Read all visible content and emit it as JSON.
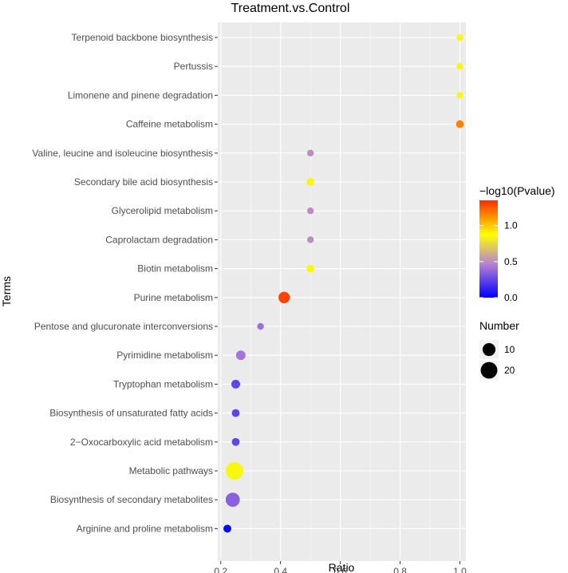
{
  "chart_data": {
    "type": "scatter",
    "title": "Treatment.vs.Control",
    "xlabel": "Ratio",
    "ylabel": "Terms",
    "xlim": [
      0.19,
      1.02
    ],
    "xticks": [
      0.2,
      0.4,
      0.6,
      0.8,
      1.0
    ],
    "xtick_labels": [
      "0.2",
      "0.4",
      "0.6",
      "0.8",
      "1.0"
    ],
    "grid": true,
    "points": [
      {
        "term": "Terpenoid backbone biosynthesis",
        "ratio": 1.0,
        "pvalue_neglog10": 0.85,
        "number": 1
      },
      {
        "term": "Pertussis",
        "ratio": 1.0,
        "pvalue_neglog10": 0.85,
        "number": 1
      },
      {
        "term": "Limonene and pinene degradation",
        "ratio": 1.0,
        "pvalue_neglog10": 0.85,
        "number": 1
      },
      {
        "term": "Caffeine metabolism",
        "ratio": 1.0,
        "pvalue_neglog10": 1.15,
        "number": 2
      },
      {
        "term": "Valine, leucine and isoleucine biosynthesis",
        "ratio": 0.5,
        "pvalue_neglog10": 0.5,
        "number": 1
      },
      {
        "term": "Secondary bile acid biosynthesis",
        "ratio": 0.5,
        "pvalue_neglog10": 0.85,
        "number": 2
      },
      {
        "term": "Glycerolipid metabolism",
        "ratio": 0.5,
        "pvalue_neglog10": 0.5,
        "number": 1
      },
      {
        "term": "Caprolactam degradation",
        "ratio": 0.5,
        "pvalue_neglog10": 0.5,
        "number": 1
      },
      {
        "term": "Biotin metabolism",
        "ratio": 0.5,
        "pvalue_neglog10": 0.85,
        "number": 2
      },
      {
        "term": "Purine metabolism",
        "ratio": 0.412,
        "pvalue_neglog10": 1.3,
        "number": 7
      },
      {
        "term": "Pentose and glucuronate interconversions",
        "ratio": 0.333,
        "pvalue_neglog10": 0.4,
        "number": 1
      },
      {
        "term": "Pyrimidine metabolism",
        "ratio": 0.267,
        "pvalue_neglog10": 0.42,
        "number": 4
      },
      {
        "term": "Tryptophan metabolism",
        "ratio": 0.25,
        "pvalue_neglog10": 0.25,
        "number": 3
      },
      {
        "term": "Biosynthesis of unsaturated fatty acids",
        "ratio": 0.25,
        "pvalue_neglog10": 0.25,
        "number": 2
      },
      {
        "term": "2−Oxocarboxylic acid metabolism",
        "ratio": 0.25,
        "pvalue_neglog10": 0.25,
        "number": 2
      },
      {
        "term": "Metabolic pathways",
        "ratio": 0.246,
        "pvalue_neglog10": 0.85,
        "number": 23
      },
      {
        "term": "Biosynthesis of secondary metabolites",
        "ratio": 0.24,
        "pvalue_neglog10": 0.35,
        "number": 13
      },
      {
        "term": "Arginine and proline metabolism",
        "ratio": 0.222,
        "pvalue_neglog10": 0.02,
        "number": 2
      }
    ],
    "color_legend": {
      "title": "−log10(Pvalue)",
      "min": 0.0,
      "max": 1.35,
      "ticks": [
        1.0,
        0.5,
        0.0
      ],
      "tick_labels": [
        "1.0",
        "0.5",
        "0.0"
      ],
      "colors": [
        "#0000ff",
        "#b883d2",
        "#ffff00",
        "#ff2c00"
      ],
      "placement": "right"
    },
    "size_legend": {
      "title": "Number",
      "entries": [
        {
          "label": "10",
          "value": 10
        },
        {
          "label": "20",
          "value": 20
        }
      ],
      "max_value": 23,
      "placement": "right"
    }
  }
}
